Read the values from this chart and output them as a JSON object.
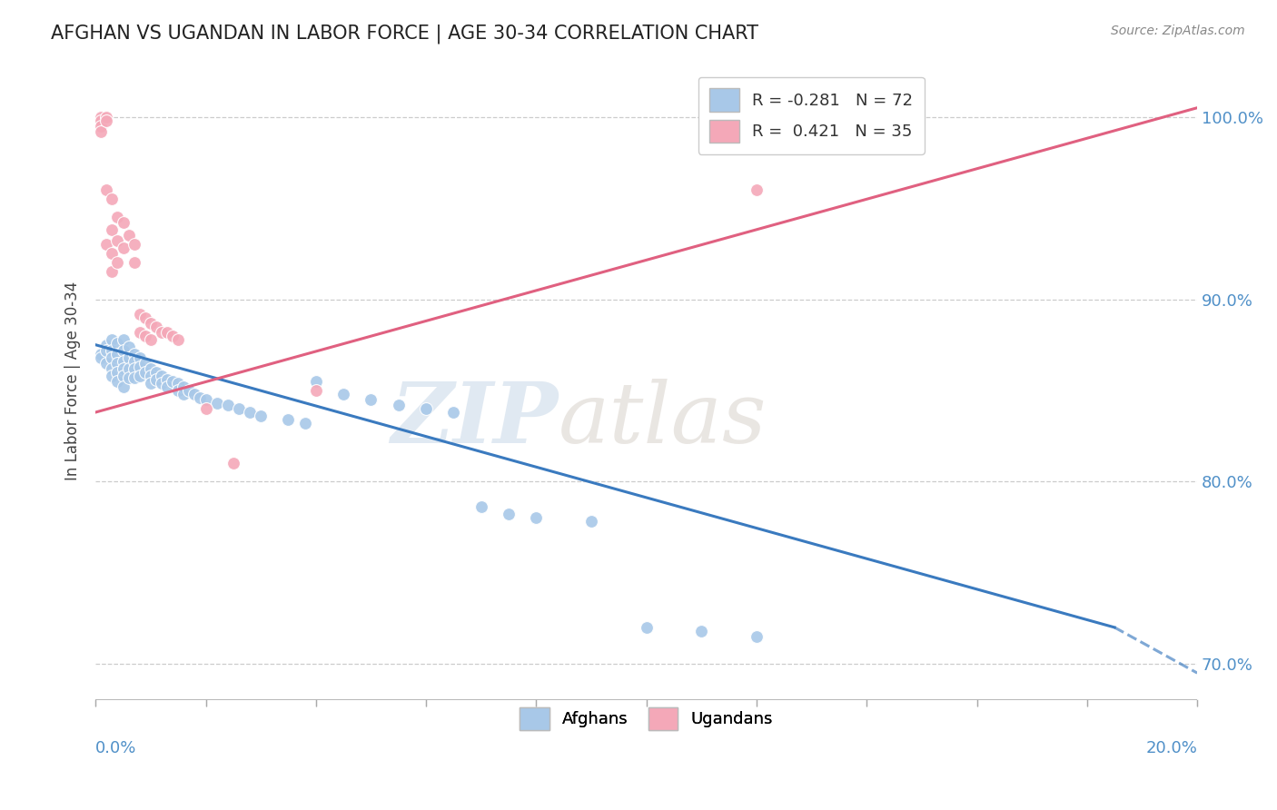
{
  "title": "AFGHAN VS UGANDAN IN LABOR FORCE | AGE 30-34 CORRELATION CHART",
  "source": "Source: ZipAtlas.com",
  "ylabel": "In Labor Force | Age 30-34",
  "blue_color": "#a8c8e8",
  "pink_color": "#f4a8b8",
  "blue_line_color": "#3a7abf",
  "pink_line_color": "#e06080",
  "watermark_zip": "ZIP",
  "watermark_atlas": "atlas",
  "xlim": [
    0.0,
    0.2
  ],
  "ylim": [
    0.68,
    1.03
  ],
  "blue_R": -0.281,
  "blue_N": 72,
  "pink_R": 0.421,
  "pink_N": 35,
  "yticks": [
    0.7,
    0.8,
    0.9,
    1.0
  ],
  "blue_points": [
    [
      0.001,
      0.87
    ],
    [
      0.001,
      0.868
    ],
    [
      0.002,
      0.875
    ],
    [
      0.002,
      0.872
    ],
    [
      0.002,
      0.865
    ],
    [
      0.003,
      0.878
    ],
    [
      0.003,
      0.872
    ],
    [
      0.003,
      0.868
    ],
    [
      0.003,
      0.862
    ],
    [
      0.003,
      0.858
    ],
    [
      0.004,
      0.876
    ],
    [
      0.004,
      0.87
    ],
    [
      0.004,
      0.865
    ],
    [
      0.004,
      0.86
    ],
    [
      0.004,
      0.855
    ],
    [
      0.005,
      0.878
    ],
    [
      0.005,
      0.872
    ],
    [
      0.005,
      0.866
    ],
    [
      0.005,
      0.862
    ],
    [
      0.005,
      0.858
    ],
    [
      0.005,
      0.852
    ],
    [
      0.006,
      0.874
    ],
    [
      0.006,
      0.868
    ],
    [
      0.006,
      0.862
    ],
    [
      0.006,
      0.857
    ],
    [
      0.007,
      0.87
    ],
    [
      0.007,
      0.866
    ],
    [
      0.007,
      0.862
    ],
    [
      0.007,
      0.857
    ],
    [
      0.008,
      0.868
    ],
    [
      0.008,
      0.863
    ],
    [
      0.008,
      0.858
    ],
    [
      0.009,
      0.865
    ],
    [
      0.009,
      0.86
    ],
    [
      0.01,
      0.862
    ],
    [
      0.01,
      0.858
    ],
    [
      0.01,
      0.854
    ],
    [
      0.011,
      0.86
    ],
    [
      0.011,
      0.856
    ],
    [
      0.012,
      0.858
    ],
    [
      0.012,
      0.854
    ],
    [
      0.013,
      0.856
    ],
    [
      0.013,
      0.852
    ],
    [
      0.014,
      0.855
    ],
    [
      0.015,
      0.854
    ],
    [
      0.015,
      0.85
    ],
    [
      0.016,
      0.852
    ],
    [
      0.016,
      0.848
    ],
    [
      0.017,
      0.85
    ],
    [
      0.018,
      0.848
    ],
    [
      0.019,
      0.846
    ],
    [
      0.02,
      0.845
    ],
    [
      0.022,
      0.843
    ],
    [
      0.024,
      0.842
    ],
    [
      0.026,
      0.84
    ],
    [
      0.028,
      0.838
    ],
    [
      0.03,
      0.836
    ],
    [
      0.035,
      0.834
    ],
    [
      0.038,
      0.832
    ],
    [
      0.04,
      0.855
    ],
    [
      0.045,
      0.848
    ],
    [
      0.05,
      0.845
    ],
    [
      0.055,
      0.842
    ],
    [
      0.06,
      0.84
    ],
    [
      0.065,
      0.838
    ],
    [
      0.07,
      0.786
    ],
    [
      0.075,
      0.782
    ],
    [
      0.08,
      0.78
    ],
    [
      0.09,
      0.778
    ],
    [
      0.1,
      0.72
    ],
    [
      0.11,
      0.718
    ],
    [
      0.12,
      0.715
    ]
  ],
  "pink_points": [
    [
      0.001,
      1.0
    ],
    [
      0.001,
      0.998
    ],
    [
      0.001,
      0.995
    ],
    [
      0.001,
      0.992
    ],
    [
      0.002,
      1.0
    ],
    [
      0.002,
      0.998
    ],
    [
      0.002,
      0.96
    ],
    [
      0.002,
      0.93
    ],
    [
      0.003,
      0.955
    ],
    [
      0.003,
      0.938
    ],
    [
      0.003,
      0.925
    ],
    [
      0.003,
      0.915
    ],
    [
      0.004,
      0.945
    ],
    [
      0.004,
      0.932
    ],
    [
      0.004,
      0.92
    ],
    [
      0.005,
      0.942
    ],
    [
      0.005,
      0.928
    ],
    [
      0.006,
      0.935
    ],
    [
      0.007,
      0.93
    ],
    [
      0.007,
      0.92
    ],
    [
      0.008,
      0.892
    ],
    [
      0.008,
      0.882
    ],
    [
      0.009,
      0.89
    ],
    [
      0.009,
      0.88
    ],
    [
      0.01,
      0.887
    ],
    [
      0.01,
      0.878
    ],
    [
      0.011,
      0.885
    ],
    [
      0.012,
      0.882
    ],
    [
      0.013,
      0.882
    ],
    [
      0.014,
      0.88
    ],
    [
      0.015,
      0.878
    ],
    [
      0.02,
      0.84
    ],
    [
      0.025,
      0.81
    ],
    [
      0.04,
      0.85
    ],
    [
      0.12,
      0.96
    ]
  ]
}
